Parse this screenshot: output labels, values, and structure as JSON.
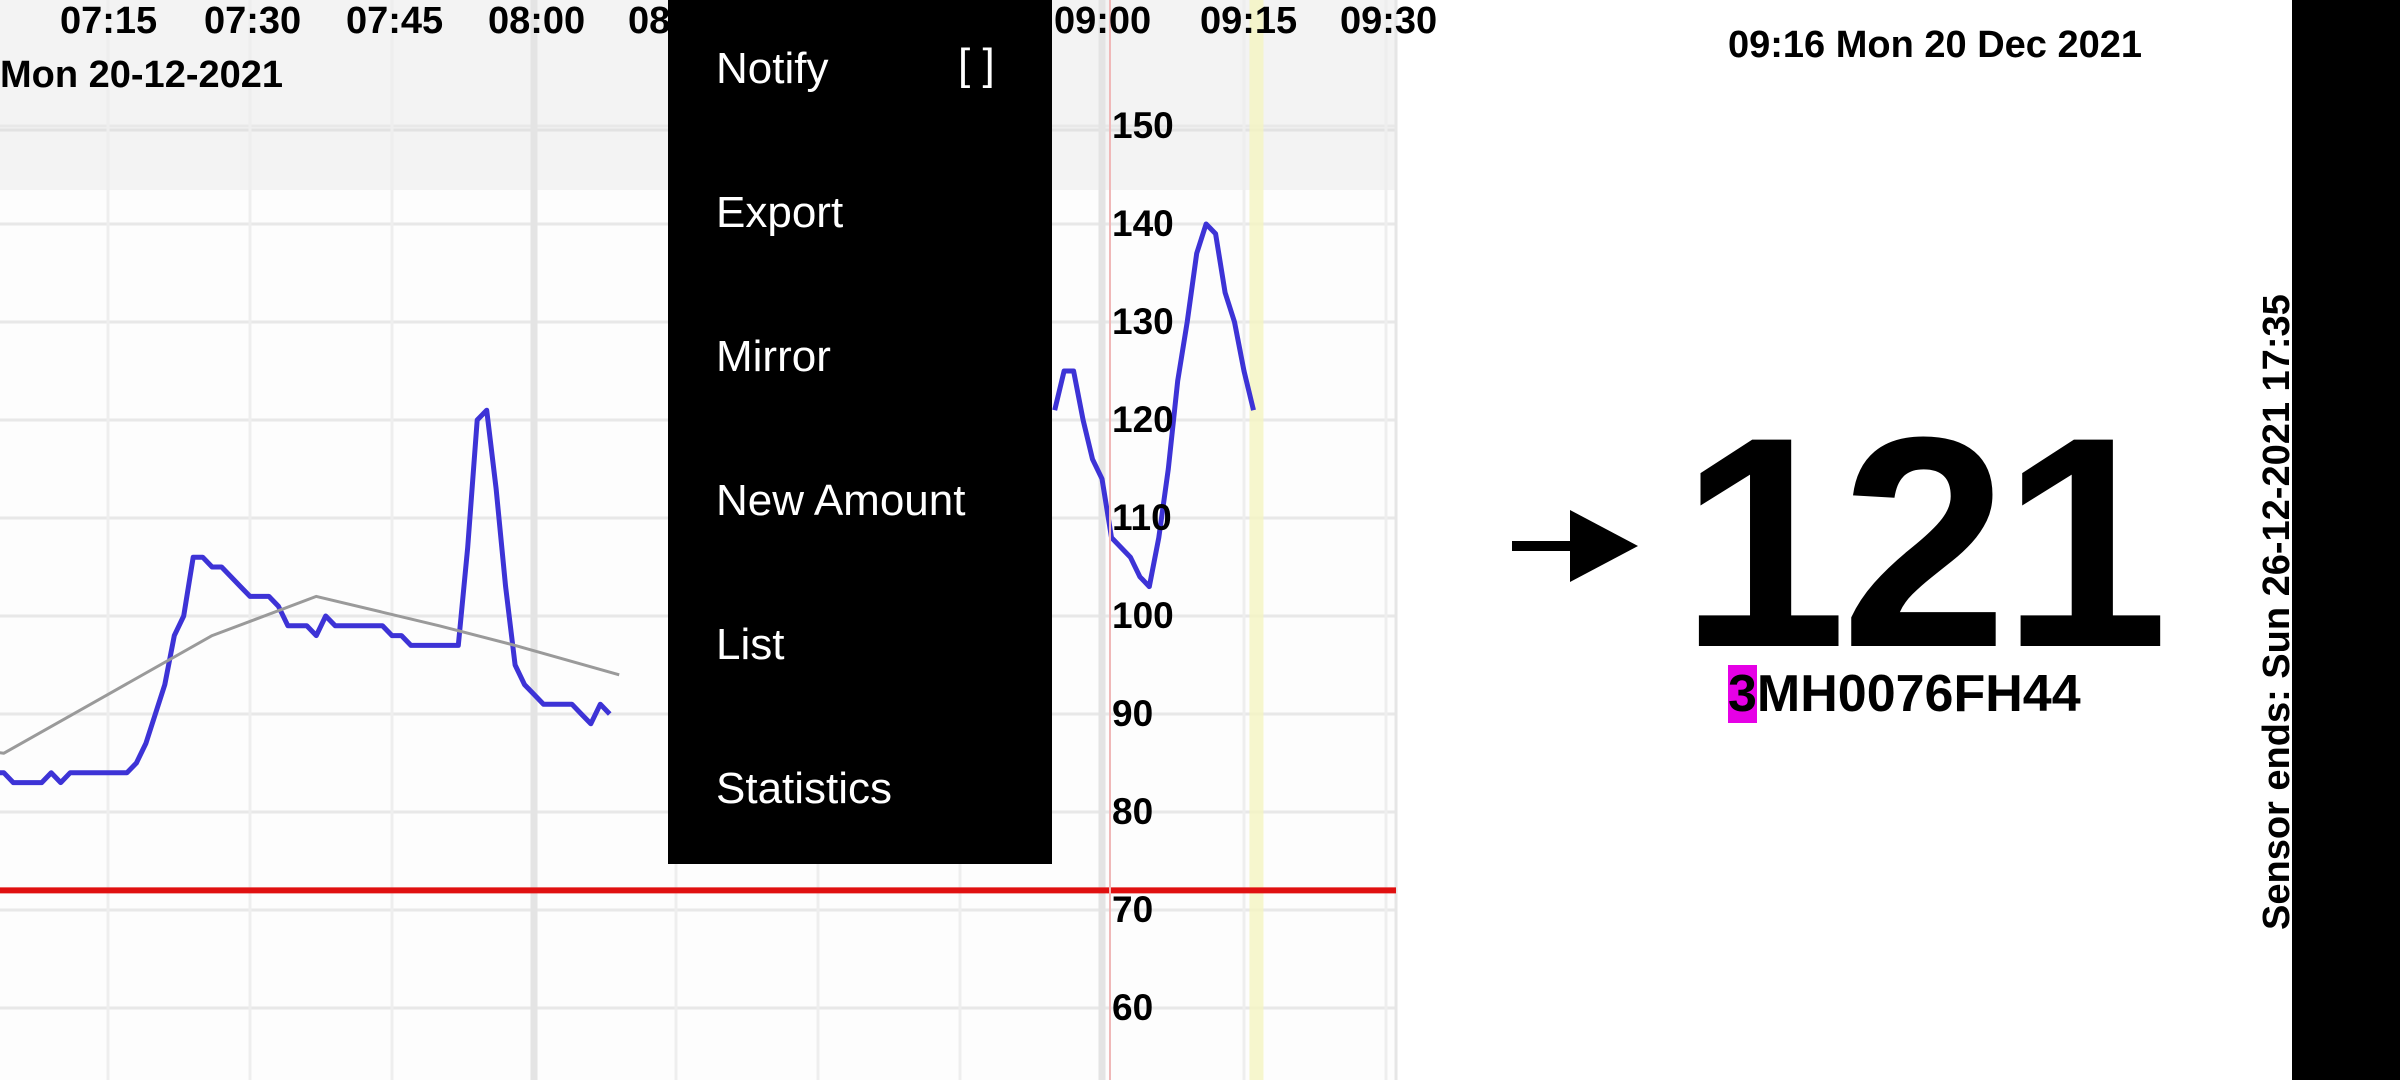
{
  "header": {
    "time_labels": [
      "07:15",
      "07:30",
      "07:45",
      "08:00",
      "08",
      "09:00",
      "09:15",
      "09:30"
    ],
    "date_label": "Mon 20-12-2021",
    "current_datetime": "09:16 Mon 20 Dec 2021"
  },
  "menu": {
    "items": [
      {
        "label": "Notify",
        "checkbox": "[ ]"
      },
      {
        "label": "Export"
      },
      {
        "label": "Mirror"
      },
      {
        "label": "New Amount"
      },
      {
        "label": "List"
      },
      {
        "label": "Statistics"
      }
    ]
  },
  "reading": {
    "value": "121",
    "trend": "rising-right-arrow",
    "sensor_id_prefix": "3",
    "sensor_id_rest": "MH0076FH44",
    "sensor_ends": "Sensor ends: Sun 26-12-2021 17:35"
  },
  "colors": {
    "glucose_line": "#3d33d6",
    "trend_line": "#9a9a9a",
    "low_threshold": "#e01010",
    "now_marker": "#f4f4c0",
    "sensor_id_highlight": "#e600e6"
  },
  "chart_data": {
    "type": "line",
    "y_tick_labels": [
      "150",
      "140",
      "130",
      "120",
      "110",
      "100",
      "90",
      "80",
      "70",
      "60"
    ],
    "ylim": [
      55,
      160
    ],
    "x_range": [
      "06:55",
      "09:31"
    ],
    "low_threshold": 72,
    "now_marker_time": "09:16",
    "series": [
      {
        "type": "glucose",
        "points": [
          [
            "06:55",
            83
          ],
          [
            "07:00",
            83
          ],
          [
            "07:02",
            84
          ],
          [
            "07:04",
            84
          ],
          [
            "07:05",
            83
          ],
          [
            "07:08",
            83
          ],
          [
            "07:09",
            84
          ],
          [
            "07:10",
            83
          ],
          [
            "07:11",
            84
          ],
          [
            "07:15",
            84
          ],
          [
            "07:17",
            84
          ],
          [
            "07:18",
            85
          ],
          [
            "07:19",
            87
          ],
          [
            "07:21",
            93
          ],
          [
            "07:22",
            98
          ],
          [
            "07:23",
            100
          ],
          [
            "07:24",
            106
          ],
          [
            "07:25",
            106
          ],
          [
            "07:26",
            105
          ],
          [
            "07:27",
            105
          ],
          [
            "07:29",
            103
          ],
          [
            "07:30",
            102
          ],
          [
            "07:32",
            102
          ],
          [
            "07:33",
            101
          ],
          [
            "07:34",
            99
          ],
          [
            "07:36",
            99
          ],
          [
            "07:37",
            98
          ],
          [
            "07:38",
            100
          ],
          [
            "07:39",
            99
          ],
          [
            "07:42",
            99
          ],
          [
            "07:44",
            99
          ],
          [
            "07:45",
            98
          ],
          [
            "07:46",
            98
          ],
          [
            "07:47",
            97
          ],
          [
            "07:52",
            97
          ],
          [
            "07:53",
            107
          ],
          [
            "07:54",
            120
          ],
          [
            "07:55",
            121
          ],
          [
            "07:56",
            113
          ],
          [
            "07:57",
            103
          ],
          [
            "07:58",
            95
          ],
          [
            "07:59",
            93
          ],
          [
            "08:00",
            92
          ],
          [
            "08:01",
            91
          ],
          [
            "08:04",
            91
          ],
          [
            "08:05",
            90
          ],
          [
            "08:06",
            89
          ],
          [
            "08:07",
            91
          ],
          [
            "08:08",
            90
          ]
        ]
      },
      {
        "type": "glucose",
        "points": [
          [
            "08:55",
            121
          ],
          [
            "08:56",
            125
          ],
          [
            "08:57",
            125
          ],
          [
            "08:58",
            120
          ],
          [
            "08:59",
            116
          ],
          [
            "09:00",
            114
          ],
          [
            "09:01",
            108
          ],
          [
            "09:02",
            107
          ],
          [
            "09:03",
            106
          ],
          [
            "09:04",
            104
          ],
          [
            "09:05",
            103
          ],
          [
            "09:06",
            108
          ],
          [
            "09:07",
            115
          ],
          [
            "09:08",
            124
          ],
          [
            "09:09",
            130
          ],
          [
            "09:10",
            137
          ],
          [
            "09:11",
            140
          ],
          [
            "09:12",
            139
          ],
          [
            "09:13",
            133
          ],
          [
            "09:14",
            130
          ],
          [
            "09:15",
            125
          ],
          [
            "09:16",
            121
          ]
        ]
      },
      {
        "type": "trend",
        "points": [
          [
            "06:55",
            87
          ],
          [
            "07:04",
            86
          ],
          [
            "07:15",
            92
          ],
          [
            "07:26",
            98
          ],
          [
            "07:37",
            102
          ],
          [
            "07:50",
            99
          ],
          [
            "07:58",
            97
          ],
          [
            "08:09",
            94
          ]
        ]
      }
    ]
  }
}
